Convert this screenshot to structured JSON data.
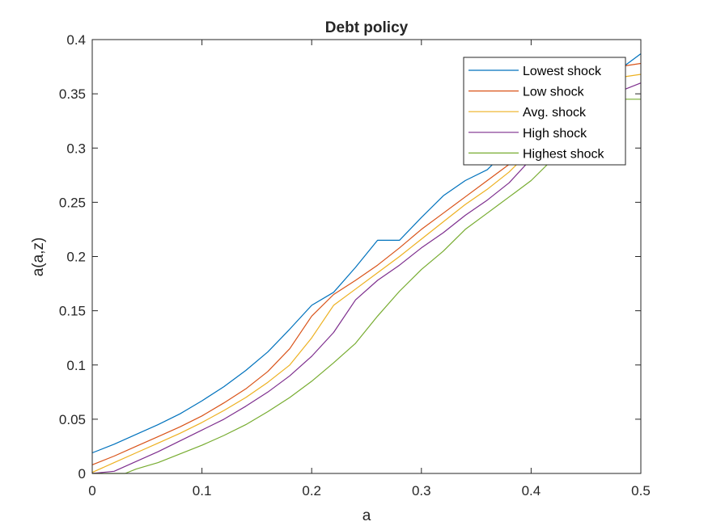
{
  "chart_data": {
    "type": "line",
    "title": "Debt policy",
    "xlabel": "a",
    "ylabel": "a(a,z)",
    "xlim": [
      0,
      0.5
    ],
    "ylim": [
      0,
      0.4
    ],
    "xticks": [
      0,
      0.1,
      0.2,
      0.3,
      0.4,
      0.5
    ],
    "xtick_labels": [
      "0",
      "0.1",
      "0.2",
      "0.3",
      "0.4",
      "0.5"
    ],
    "yticks": [
      0,
      0.05,
      0.1,
      0.15,
      0.2,
      0.25,
      0.3,
      0.35,
      0.4
    ],
    "ytick_labels": [
      "0",
      "0.05",
      "0.1",
      "0.15",
      "0.2",
      "0.25",
      "0.3",
      "0.35",
      "0.4"
    ],
    "grid": false,
    "legend_position": "top-right",
    "series": [
      {
        "name": "Lowest shock",
        "color": "#0072BD",
        "x": [
          0,
          0.02,
          0.04,
          0.06,
          0.08,
          0.1,
          0.12,
          0.14,
          0.16,
          0.18,
          0.2,
          0.22,
          0.24,
          0.26,
          0.28,
          0.3,
          0.32,
          0.34,
          0.36,
          0.38,
          0.4,
          0.42,
          0.44,
          0.46,
          0.48,
          0.5
        ],
        "y": [
          0.019,
          0.027,
          0.036,
          0.045,
          0.055,
          0.067,
          0.08,
          0.095,
          0.112,
          0.133,
          0.155,
          0.167,
          0.19,
          0.215,
          0.215,
          0.236,
          0.256,
          0.27,
          0.28,
          0.3,
          0.32,
          0.335,
          0.345,
          0.355,
          0.372,
          0.387
        ]
      },
      {
        "name": "Low shock",
        "color": "#D95319",
        "x": [
          0,
          0.02,
          0.04,
          0.06,
          0.08,
          0.1,
          0.12,
          0.14,
          0.16,
          0.18,
          0.2,
          0.22,
          0.24,
          0.26,
          0.28,
          0.3,
          0.32,
          0.34,
          0.36,
          0.38,
          0.4,
          0.42,
          0.44,
          0.46,
          0.48,
          0.5
        ],
        "y": [
          0.008,
          0.016,
          0.025,
          0.034,
          0.043,
          0.053,
          0.065,
          0.078,
          0.094,
          0.115,
          0.145,
          0.165,
          0.178,
          0.192,
          0.208,
          0.225,
          0.24,
          0.255,
          0.27,
          0.285,
          0.305,
          0.325,
          0.34,
          0.355,
          0.375,
          0.378
        ]
      },
      {
        "name": "Avg. shock",
        "color": "#EDB120",
        "x": [
          0,
          0.02,
          0.04,
          0.06,
          0.08,
          0.1,
          0.12,
          0.14,
          0.16,
          0.18,
          0.2,
          0.22,
          0.24,
          0.26,
          0.28,
          0.3,
          0.32,
          0.34,
          0.36,
          0.38,
          0.4,
          0.42,
          0.44,
          0.46,
          0.48,
          0.5
        ],
        "y": [
          0.001,
          0.01,
          0.019,
          0.028,
          0.037,
          0.047,
          0.058,
          0.07,
          0.084,
          0.1,
          0.125,
          0.155,
          0.17,
          0.185,
          0.2,
          0.216,
          0.232,
          0.248,
          0.262,
          0.278,
          0.298,
          0.318,
          0.335,
          0.35,
          0.365,
          0.368
        ]
      },
      {
        "name": "High shock",
        "color": "#7E2F8E",
        "x": [
          0,
          0.02,
          0.04,
          0.06,
          0.08,
          0.1,
          0.12,
          0.14,
          0.16,
          0.18,
          0.2,
          0.22,
          0.24,
          0.26,
          0.28,
          0.3,
          0.32,
          0.34,
          0.36,
          0.38,
          0.4,
          0.42,
          0.44,
          0.46,
          0.48,
          0.5
        ],
        "y": [
          0,
          0.002,
          0.011,
          0.02,
          0.03,
          0.04,
          0.05,
          0.062,
          0.075,
          0.09,
          0.108,
          0.13,
          0.16,
          0.178,
          0.192,
          0.208,
          0.222,
          0.238,
          0.252,
          0.268,
          0.29,
          0.31,
          0.325,
          0.338,
          0.352,
          0.36
        ]
      },
      {
        "name": "Highest shock",
        "color": "#77AC30",
        "x": [
          0,
          0.02,
          0.03,
          0.04,
          0.06,
          0.08,
          0.1,
          0.12,
          0.14,
          0.16,
          0.18,
          0.2,
          0.22,
          0.24,
          0.26,
          0.28,
          0.3,
          0.32,
          0.34,
          0.36,
          0.38,
          0.4,
          0.42,
          0.44,
          0.46,
          0.48,
          0.5
        ],
        "y": [
          0,
          0,
          0,
          0.004,
          0.01,
          0.018,
          0.026,
          0.035,
          0.045,
          0.057,
          0.07,
          0.085,
          0.102,
          0.12,
          0.145,
          0.168,
          0.188,
          0.205,
          0.225,
          0.24,
          0.255,
          0.27,
          0.29,
          0.31,
          0.33,
          0.345,
          0.345
        ]
      }
    ]
  }
}
